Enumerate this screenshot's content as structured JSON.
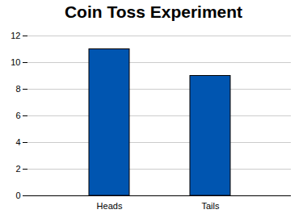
{
  "chart_data": {
    "type": "bar",
    "title": "Coin Toss Experiment",
    "categories": [
      "Heads",
      "Tails"
    ],
    "values": [
      11,
      9
    ],
    "color": "#0055b0",
    "ylim": [
      0,
      12
    ],
    "yticks": [
      0,
      2,
      4,
      6,
      8,
      10,
      12
    ],
    "grid": true
  }
}
